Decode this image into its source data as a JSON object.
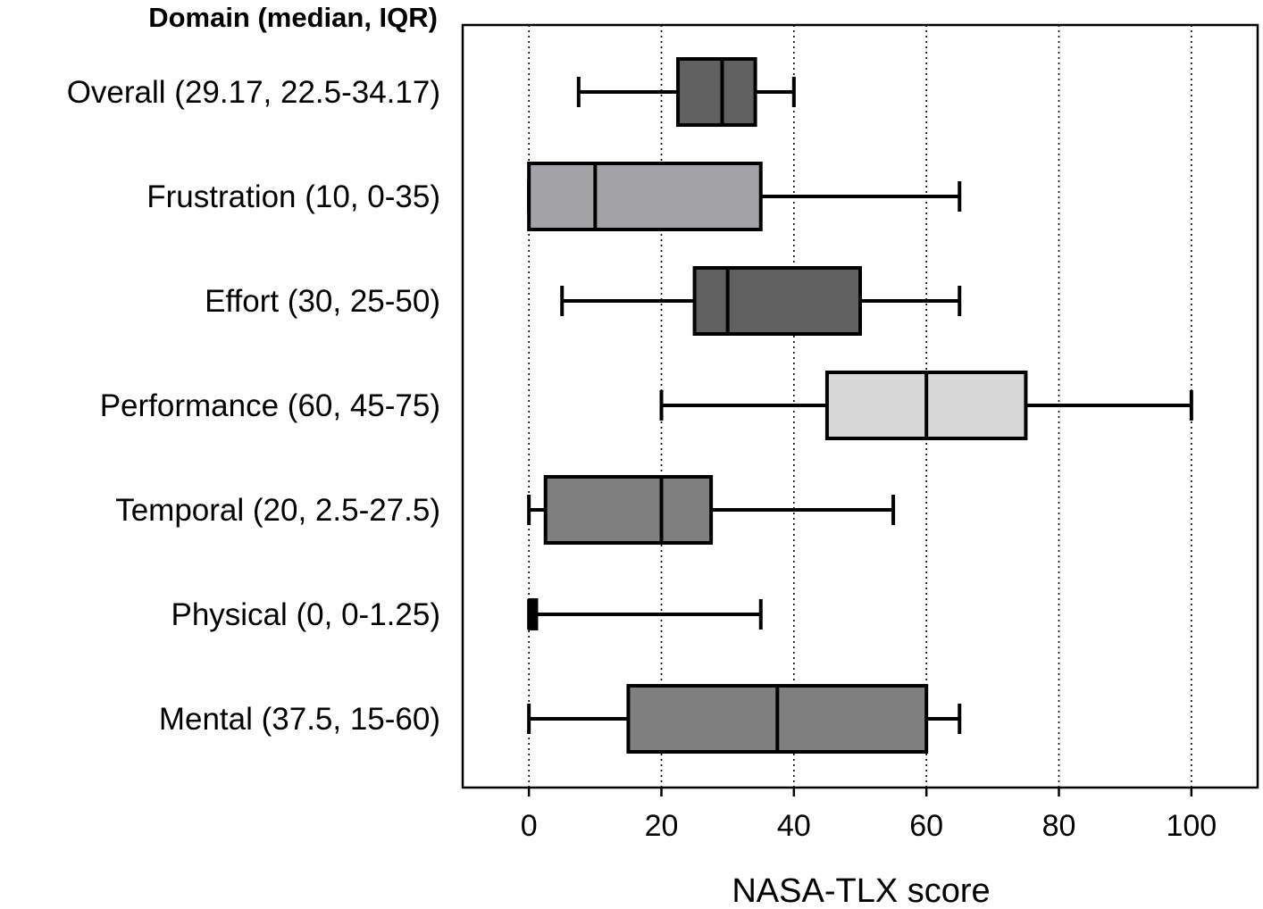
{
  "chart_data": {
    "type": "boxplot",
    "orientation": "horizontal",
    "row_header": "Domain (median, IQR)",
    "xlabel": "NASA-TLX score",
    "xlim": [
      -10,
      110
    ],
    "xticks": [
      0,
      20,
      40,
      60,
      80,
      100
    ],
    "xtick_labels": [
      "0",
      "20",
      "40",
      "60",
      "80",
      "100"
    ],
    "grid": "vertical dotted at ticks",
    "series": [
      {
        "label": "Overall (29.17, 22.5-34.17)",
        "whisker_low": 7.5,
        "q1": 22.5,
        "median": 29.17,
        "q3": 34.17,
        "whisker_high": 40,
        "color": "#606060"
      },
      {
        "label": "Frustration (10, 0-35)",
        "whisker_low": 0,
        "q1": 0,
        "median": 10,
        "q3": 35,
        "whisker_high": 65,
        "color": "#a3a3a5"
      },
      {
        "label": "Effort (30, 25-50)",
        "whisker_low": 5,
        "q1": 25,
        "median": 30,
        "q3": 50,
        "whisker_high": 65,
        "color": "#606060"
      },
      {
        "label": "Performance (60, 45-75)",
        "whisker_low": 20,
        "q1": 45,
        "median": 60,
        "q3": 75,
        "whisker_high": 100,
        "color": "#d7d7d7"
      },
      {
        "label": "Temporal (20, 2.5-27.5)",
        "whisker_low": 0,
        "q1": 2.5,
        "median": 20,
        "q3": 27.5,
        "whisker_high": 55,
        "color": "#7f7f7f"
      },
      {
        "label": "Physical (0, 0-1.25)",
        "whisker_low": 0,
        "q1": 0,
        "median": 0,
        "q3": 1.25,
        "whisker_high": 35,
        "color": "#000000"
      },
      {
        "label": "Mental (37.5, 15-60)",
        "whisker_low": 0,
        "q1": 15,
        "median": 37.5,
        "q3": 60,
        "whisker_high": 65,
        "color": "#7f7f7f"
      }
    ]
  }
}
